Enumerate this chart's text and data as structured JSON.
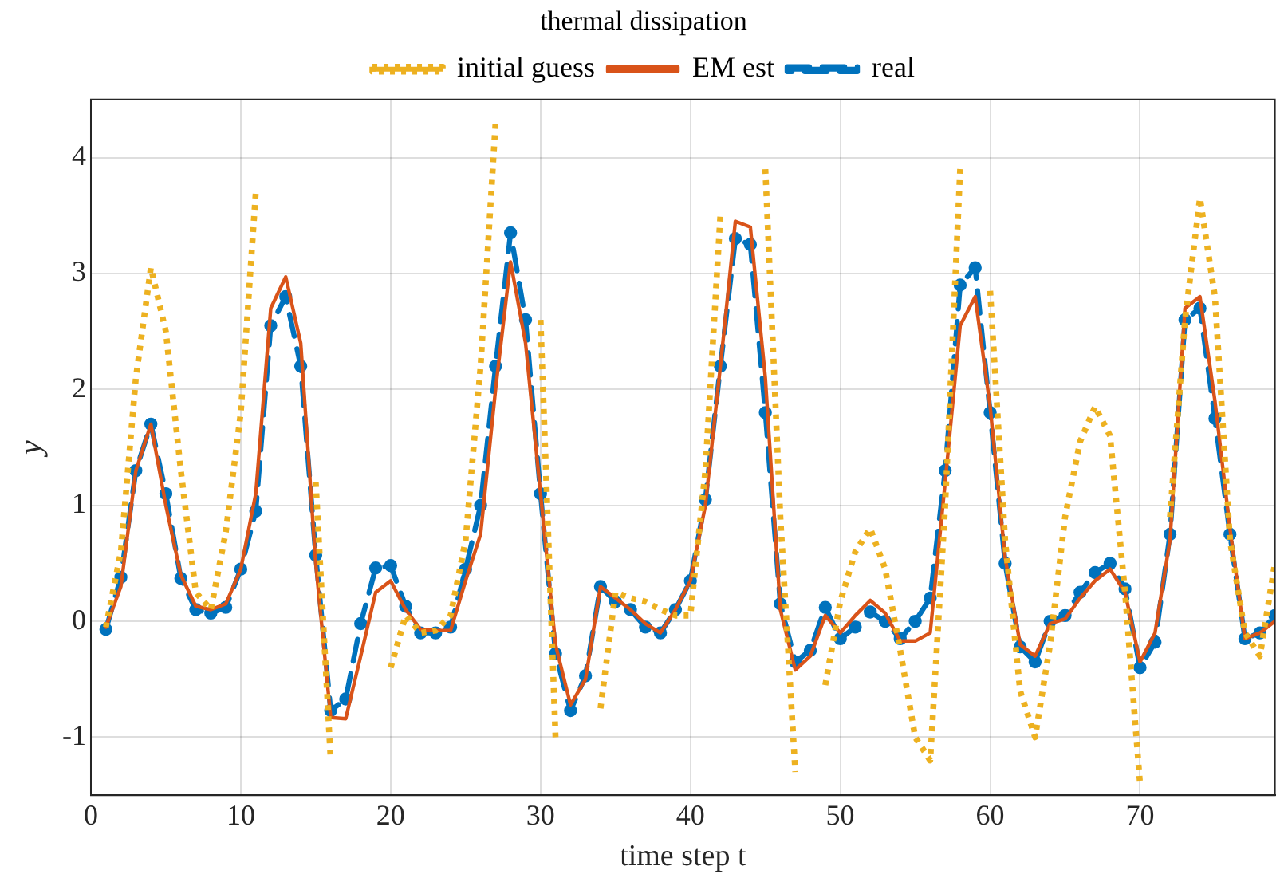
{
  "chart_data": {
    "type": "line",
    "title": "thermal dissipation",
    "xlabel": "time step t",
    "ylabel": "y",
    "x": [
      1,
      2,
      3,
      4,
      5,
      6,
      7,
      8,
      9,
      10,
      11,
      12,
      13,
      14,
      15,
      16,
      17,
      18,
      19,
      20,
      21,
      22,
      23,
      24,
      25,
      26,
      27,
      28,
      29,
      30,
      31,
      32,
      33,
      34,
      35,
      36,
      37,
      38,
      39,
      40,
      41,
      42,
      43,
      44,
      45,
      46,
      47,
      48,
      49,
      50,
      51,
      52,
      53,
      54,
      55,
      56,
      57,
      58,
      59,
      60,
      61,
      62,
      63,
      64,
      65,
      66,
      67,
      68,
      69,
      70,
      71,
      72,
      73,
      74,
      75,
      76,
      77,
      78,
      79
    ],
    "series": [
      {
        "name": "real",
        "color": "#0072bd",
        "line_style": "dashed",
        "marker": "circle",
        "values": [
          -0.07,
          0.38,
          1.3,
          1.7,
          1.1,
          0.37,
          0.1,
          0.07,
          0.12,
          0.45,
          0.95,
          2.55,
          2.8,
          2.2,
          0.57,
          -0.77,
          -0.67,
          -0.02,
          0.46,
          0.48,
          0.13,
          -0.1,
          -0.1,
          -0.05,
          0.45,
          1.0,
          2.2,
          3.35,
          2.6,
          1.1,
          -0.28,
          -0.77,
          -0.47,
          0.3,
          0.17,
          0.1,
          -0.05,
          -0.1,
          0.1,
          0.35,
          1.05,
          2.2,
          3.3,
          3.25,
          1.8,
          0.15,
          -0.35,
          -0.25,
          0.12,
          -0.15,
          -0.05,
          0.08,
          0,
          -0.15,
          0,
          0.2,
          1.3,
          2.9,
          3.05,
          1.8,
          0.5,
          -0.22,
          -0.35,
          0,
          0.05,
          0.25,
          0.42,
          0.5,
          0.28,
          -0.4,
          -0.18,
          0.75,
          2.6,
          2.7,
          1.75,
          0.75,
          -0.15,
          -0.1,
          0.05
        ]
      },
      {
        "name": "EM est",
        "color": "#d95319",
        "line_style": "solid",
        "marker": "none",
        "values": [
          -0.05,
          0.3,
          1.3,
          1.7,
          1.0,
          0.4,
          0.13,
          0.1,
          0.15,
          0.45,
          1.1,
          2.7,
          2.97,
          2.4,
          0.5,
          -0.83,
          -0.84,
          -0.3,
          0.25,
          0.35,
          0.1,
          -0.07,
          -0.08,
          -0.08,
          0.35,
          0.75,
          2.0,
          3.1,
          2.4,
          1.1,
          -0.2,
          -0.72,
          -0.5,
          0.3,
          0.2,
          0.1,
          -0.02,
          -0.1,
          0.1,
          0.35,
          1.0,
          2.2,
          3.45,
          3.4,
          2.1,
          0.1,
          -0.42,
          -0.3,
          0.05,
          -0.1,
          0.05,
          0.18,
          0.07,
          -0.17,
          -0.17,
          -0.1,
          1.2,
          2.55,
          2.8,
          1.85,
          0.55,
          -0.2,
          -0.3,
          -0.02,
          0.02,
          0.2,
          0.35,
          0.45,
          0.25,
          -0.35,
          -0.1,
          0.7,
          2.7,
          2.8,
          1.9,
          0.8,
          -0.15,
          -0.1,
          0.0
        ]
      },
      {
        "name": "initial guess",
        "color": "#edb120",
        "line_style": "dotted",
        "marker": "none",
        "values": [
          -0.05,
          0.6,
          2.1,
          3.05,
          2.5,
          1.3,
          0.25,
          0.1,
          0.77,
          1.8,
          3.7,
          null,
          null,
          null,
          1.2,
          -1.2,
          null,
          null,
          null,
          -0.4,
          0.05,
          -0.1,
          -0.08,
          0.05,
          0.7,
          2.2,
          4.3,
          null,
          null,
          2.6,
          -1.0,
          null,
          null,
          -0.75,
          0.25,
          0.2,
          0.17,
          0.1,
          0.05,
          0.05,
          1.3,
          3.5,
          null,
          null,
          3.9,
          0.9,
          -1.3,
          null,
          -0.55,
          0.17,
          0.6,
          0.8,
          0.45,
          -0.25,
          -1.0,
          -1.2,
          1.0,
          3.9,
          null,
          2.85,
          0.7,
          -0.6,
          -1.0,
          -0.2,
          0.9,
          1.55,
          1.85,
          1.6,
          0.25,
          -1.4,
          null,
          0.9,
          2.6,
          3.65,
          2.8,
          0.7,
          -0.1,
          -0.3,
          0.5
        ]
      }
    ],
    "xlim": [
      0,
      79
    ],
    "xticks": [
      0,
      10,
      20,
      30,
      40,
      50,
      60,
      70
    ],
    "ylim": [
      -1.5,
      4.5
    ],
    "yticks": [
      -1,
      0,
      1,
      2,
      3,
      4
    ],
    "grid": true,
    "legend": "top"
  }
}
